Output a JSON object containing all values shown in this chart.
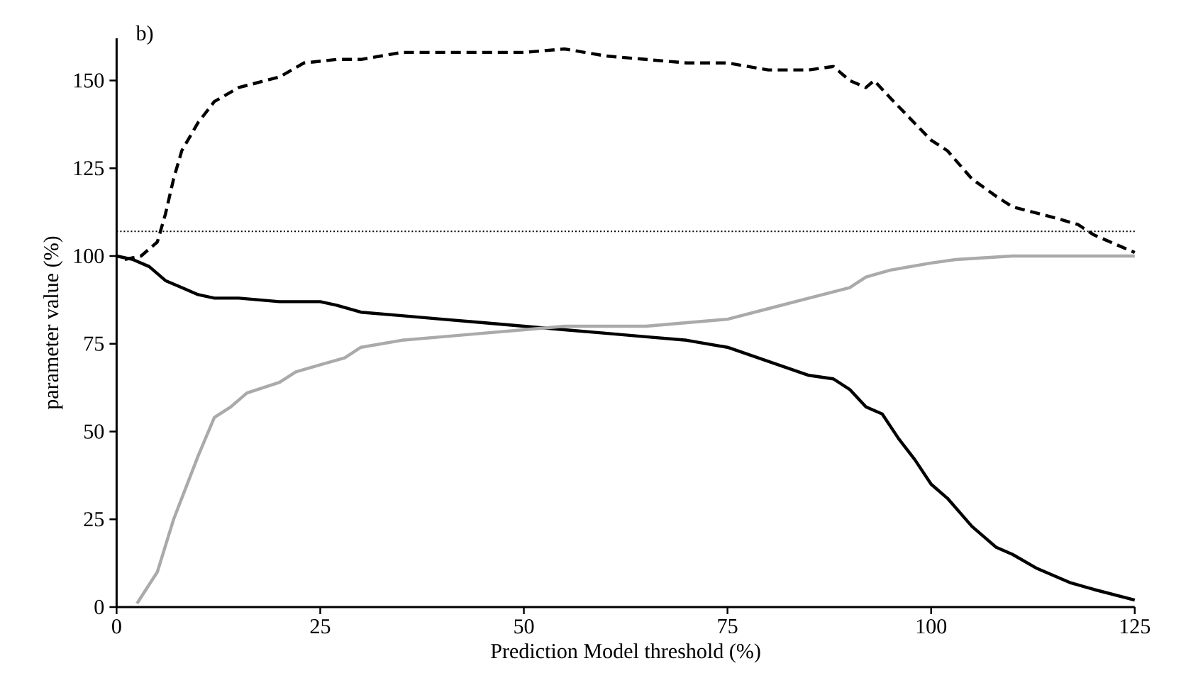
{
  "chart_data": {
    "type": "line",
    "title": "b)",
    "xlabel": "Prediction Model threshold (%)",
    "ylabel": "parameter value (%)",
    "xlim": [
      0,
      125
    ],
    "ylim": [
      0,
      162
    ],
    "xticks": [
      0,
      25,
      50,
      75,
      100,
      125
    ],
    "yticks": [
      0,
      25,
      50,
      75,
      100,
      125,
      150
    ],
    "grid": false,
    "ref_lines": [
      {
        "axis": "y",
        "value": 107,
        "line_style": "dotted",
        "color": "#000000"
      }
    ],
    "series": [
      {
        "color": "#000000",
        "line_style": "dashed",
        "x": [
          1,
          3,
          5,
          6,
          7,
          8,
          10,
          12,
          15,
          20,
          23,
          27,
          30,
          35,
          40,
          45,
          50,
          55,
          60,
          65,
          70,
          75,
          80,
          85,
          88,
          90,
          92,
          93,
          95,
          100,
          102,
          105,
          108,
          110,
          115,
          118,
          120,
          125
        ],
        "values": [
          99,
          100,
          104,
          112,
          122,
          130,
          138,
          144,
          148,
          151,
          155,
          156,
          156,
          158,
          158,
          158,
          158,
          159,
          157,
          156,
          155,
          155,
          153,
          153,
          154,
          150,
          148,
          150,
          145,
          133,
          130,
          122,
          117,
          114,
          111,
          109,
          106,
          101
        ]
      },
      {
        "color": "#000000",
        "line_style": "solid",
        "x": [
          0,
          2,
          4,
          6,
          8,
          10,
          12,
          15,
          20,
          25,
          27,
          30,
          35,
          40,
          45,
          50,
          55,
          60,
          65,
          70,
          75,
          80,
          85,
          88,
          90,
          92,
          94,
          96,
          98,
          100,
          102,
          105,
          108,
          110,
          113,
          117,
          120,
          125
        ],
        "values": [
          100,
          99,
          97,
          93,
          91,
          89,
          88,
          88,
          87,
          87,
          86,
          84,
          83,
          82,
          81,
          80,
          79,
          78,
          77,
          76,
          74,
          70,
          66,
          65,
          62,
          57,
          55,
          48,
          42,
          35,
          31,
          23,
          17,
          15,
          11,
          7,
          5,
          2
        ]
      },
      {
        "color": "#aaaaaa",
        "line_style": "solid",
        "x": [
          2.5,
          5,
          7,
          9,
          10,
          12,
          14,
          16,
          20,
          22,
          25,
          28,
          30,
          35,
          40,
          45,
          50,
          55,
          60,
          65,
          70,
          75,
          80,
          85,
          90,
          92,
          95,
          100,
          103,
          110,
          125
        ],
        "values": [
          1,
          10,
          25,
          37,
          43,
          54,
          57,
          61,
          64,
          67,
          69,
          71,
          74,
          76,
          77,
          78,
          79,
          80,
          80,
          80,
          81,
          82,
          85,
          88,
          91,
          94,
          96,
          98,
          99,
          100,
          100
        ]
      }
    ]
  }
}
